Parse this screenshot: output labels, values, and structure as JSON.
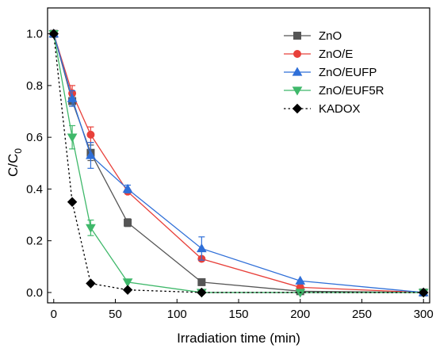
{
  "chart_data": {
    "type": "line",
    "xlabel": "Irradiation time (min)",
    "ylabel": "C/C",
    "ylabel_subscript": "0",
    "xlim": [
      -5,
      305
    ],
    "ylim": [
      -0.04,
      1.1
    ],
    "xticks": [
      0,
      50,
      100,
      150,
      200,
      250,
      300
    ],
    "xtick_labels": [
      "0",
      "50",
      "100",
      "150",
      "200",
      "250",
      "300"
    ],
    "yticks": [
      0.0,
      0.2,
      0.4,
      0.6,
      0.8,
      1.0
    ],
    "ytick_labels": [
      "0.0",
      "0.2",
      "0.4",
      "0.6",
      "0.8",
      "1.0"
    ],
    "grid": false,
    "legend_position": "top-right",
    "series": [
      {
        "name": "ZnO",
        "color": "#555555",
        "marker": "square",
        "line": "solid",
        "x": [
          0,
          15,
          30,
          60,
          120,
          200,
          300
        ],
        "y": [
          1.0,
          0.74,
          0.54,
          0.27,
          0.04,
          0.005,
          0.0
        ],
        "err": [
          0.0,
          0.02,
          0.03,
          0.015,
          0.0,
          0.0,
          0.0
        ]
      },
      {
        "name": "ZnO/E",
        "color": "#e8403a",
        "marker": "circle",
        "line": "solid",
        "x": [
          0,
          15,
          30,
          60,
          120,
          200,
          300
        ],
        "y": [
          1.0,
          0.77,
          0.61,
          0.39,
          0.13,
          0.02,
          0.0
        ],
        "err": [
          0.0,
          0.03,
          0.03,
          0.0,
          0.0,
          0.0,
          0.0
        ]
      },
      {
        "name": "ZnO/EUFP",
        "color": "#2f6fd8",
        "marker": "triangle-up",
        "line": "solid",
        "x": [
          0,
          15,
          30,
          60,
          120,
          200,
          300
        ],
        "y": [
          1.0,
          0.75,
          0.53,
          0.4,
          0.17,
          0.045,
          0.0
        ],
        "err": [
          0.0,
          0.03,
          0.05,
          0.015,
          0.045,
          0.0,
          0.0
        ]
      },
      {
        "name": "ZnO/EUF5R",
        "color": "#3fb86a",
        "marker": "triangle-down",
        "line": "solid",
        "x": [
          0,
          15,
          30,
          60,
          120,
          200,
          300
        ],
        "y": [
          1.0,
          0.6,
          0.25,
          0.04,
          0.0,
          0.0,
          0.0
        ],
        "err": [
          0.0,
          0.045,
          0.03,
          0.0,
          0.0,
          0.0,
          0.0
        ]
      },
      {
        "name": "KADOX",
        "color": "#000000",
        "marker": "diamond",
        "line": "dotted",
        "x": [
          0,
          15,
          30,
          60,
          120,
          300
        ],
        "y": [
          1.0,
          0.35,
          0.035,
          0.01,
          0.0,
          0.0
        ],
        "err": [
          0.0,
          0.0,
          0.0,
          0.0,
          0.0,
          0.0
        ]
      }
    ]
  }
}
